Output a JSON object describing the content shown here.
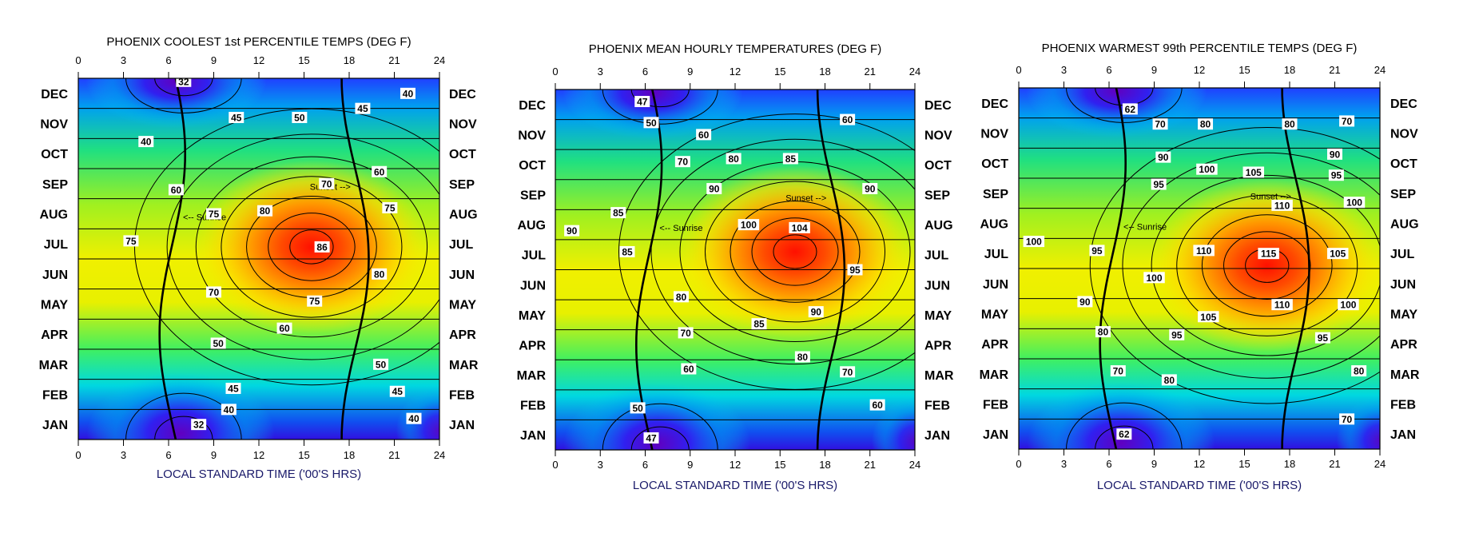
{
  "chart_data": [
    {
      "type": "heatmap",
      "title": "PHOENIX COOLEST 1st PERCENTILE TEMPS (DEG F)",
      "xlabel": "LOCAL STANDARD TIME ('00'S HRS)",
      "x_ticks": [
        "0",
        "3",
        "6",
        "9",
        "12",
        "15",
        "18",
        "21",
        "24"
      ],
      "xlim": [
        0,
        24
      ],
      "months": [
        "JAN",
        "FEB",
        "MAR",
        "APR",
        "MAY",
        "JUN",
        "JUL",
        "AUG",
        "SEP",
        "OCT",
        "NOV",
        "DEC"
      ],
      "peak": {
        "hour": 15.5,
        "month": 6.4,
        "value": 86
      },
      "min": 32,
      "contour_labels": [
        {
          "text": "32",
          "hour": 7.0,
          "month": 11.9
        },
        {
          "text": "45",
          "hour": 10.5,
          "month": 10.7
        },
        {
          "text": "50",
          "hour": 14.7,
          "month": 10.7
        },
        {
          "text": "45",
          "hour": 18.9,
          "month": 11.0
        },
        {
          "text": "40",
          "hour": 21.9,
          "month": 11.5
        },
        {
          "text": "40",
          "hour": 4.5,
          "month": 9.9
        },
        {
          "text": "60",
          "hour": 20.0,
          "month": 8.9
        },
        {
          "text": "70",
          "hour": 16.5,
          "month": 8.5
        },
        {
          "text": "60",
          "hour": 6.5,
          "month": 8.3
        },
        {
          "text": "80",
          "hour": 12.4,
          "month": 7.6
        },
        {
          "text": "75",
          "hour": 20.7,
          "month": 7.7
        },
        {
          "text": "75",
          "hour": 9.0,
          "month": 7.5
        },
        {
          "text": "75",
          "hour": 3.5,
          "month": 6.6
        },
        {
          "text": "86",
          "hour": 16.2,
          "month": 6.4
        },
        {
          "text": "80",
          "hour": 20.0,
          "month": 5.5
        },
        {
          "text": "70",
          "hour": 9.0,
          "month": 4.9
        },
        {
          "text": "75",
          "hour": 15.7,
          "month": 4.6
        },
        {
          "text": "60",
          "hour": 13.7,
          "month": 3.7
        },
        {
          "text": "50",
          "hour": 9.3,
          "month": 3.2
        },
        {
          "text": "50",
          "hour": 20.1,
          "month": 2.5
        },
        {
          "text": "45",
          "hour": 10.3,
          "month": 1.7
        },
        {
          "text": "45",
          "hour": 21.2,
          "month": 1.6
        },
        {
          "text": "40",
          "hour": 10.0,
          "month": 1.0
        },
        {
          "text": "40",
          "hour": 22.3,
          "month": 0.7
        },
        {
          "text": "32",
          "hour": 8.0,
          "month": 0.5
        }
      ]
    },
    {
      "type": "heatmap",
      "title": "PHOENIX MEAN HOURLY TEMPERATURES (DEG F)",
      "xlabel": "LOCAL STANDARD TIME ('00'S HRS)",
      "x_ticks": [
        "0",
        "3",
        "6",
        "9",
        "12",
        "15",
        "18",
        "21",
        "24"
      ],
      "xlim": [
        0,
        24
      ],
      "months": [
        "JAN",
        "FEB",
        "MAR",
        "APR",
        "MAY",
        "JUN",
        "JUL",
        "AUG",
        "SEP",
        "OCT",
        "NOV",
        "DEC"
      ],
      "peak": {
        "hour": 16.0,
        "month": 6.6,
        "value": 104
      },
      "min": 47,
      "contour_labels": [
        {
          "text": "47",
          "hour": 5.8,
          "month": 11.6
        },
        {
          "text": "50",
          "hour": 6.4,
          "month": 10.9
        },
        {
          "text": "60",
          "hour": 19.5,
          "month": 11.0
        },
        {
          "text": "60",
          "hour": 9.9,
          "month": 10.5
        },
        {
          "text": "80",
          "hour": 11.9,
          "month": 9.7
        },
        {
          "text": "85",
          "hour": 15.7,
          "month": 9.7
        },
        {
          "text": "70",
          "hour": 8.5,
          "month": 9.6
        },
        {
          "text": "90",
          "hour": 10.6,
          "month": 8.7
        },
        {
          "text": "90",
          "hour": 21.0,
          "month": 8.7
        },
        {
          "text": "85",
          "hour": 4.2,
          "month": 7.9
        },
        {
          "text": "90",
          "hour": 1.1,
          "month": 7.3
        },
        {
          "text": "100",
          "hour": 12.9,
          "month": 7.5
        },
        {
          "text": "104",
          "hour": 16.3,
          "month": 7.4
        },
        {
          "text": "85",
          "hour": 4.8,
          "month": 6.6
        },
        {
          "text": "95",
          "hour": 20.0,
          "month": 6.0
        },
        {
          "text": "80",
          "hour": 8.4,
          "month": 5.1
        },
        {
          "text": "90",
          "hour": 17.4,
          "month": 4.6
        },
        {
          "text": "85",
          "hour": 13.6,
          "month": 4.2
        },
        {
          "text": "70",
          "hour": 8.7,
          "month": 3.9
        },
        {
          "text": "80",
          "hour": 16.5,
          "month": 3.1
        },
        {
          "text": "70",
          "hour": 19.5,
          "month": 2.6
        },
        {
          "text": "60",
          "hour": 8.9,
          "month": 2.7
        },
        {
          "text": "60",
          "hour": 21.5,
          "month": 1.5
        },
        {
          "text": "50",
          "hour": 5.5,
          "month": 1.4
        },
        {
          "text": "47",
          "hour": 6.4,
          "month": 0.4
        }
      ]
    },
    {
      "type": "heatmap",
      "title": "PHOENIX WARMEST 99th PERCENTILE TEMPS (DEG F)",
      "xlabel": "LOCAL STANDARD TIME ('00'S HRS)",
      "x_ticks": [
        "0",
        "3",
        "6",
        "9",
        "12",
        "15",
        "18",
        "21",
        "24"
      ],
      "xlim": [
        0,
        24
      ],
      "months": [
        "JAN",
        "FEB",
        "MAR",
        "APR",
        "MAY",
        "JUN",
        "JUL",
        "AUG",
        "SEP",
        "OCT",
        "NOV",
        "DEC"
      ],
      "peak": {
        "hour": 16.5,
        "month": 6.1,
        "value": 115
      },
      "min": 62,
      "contour_labels": [
        {
          "text": "62",
          "hour": 7.4,
          "month": 11.3
        },
        {
          "text": "70",
          "hour": 9.4,
          "month": 10.8
        },
        {
          "text": "80",
          "hour": 12.4,
          "month": 10.8
        },
        {
          "text": "80",
          "hour": 18.0,
          "month": 10.8
        },
        {
          "text": "70",
          "hour": 21.8,
          "month": 10.9
        },
        {
          "text": "90",
          "hour": 9.6,
          "month": 9.7
        },
        {
          "text": "90",
          "hour": 21.0,
          "month": 9.8
        },
        {
          "text": "100",
          "hour": 12.5,
          "month": 9.3
        },
        {
          "text": "105",
          "hour": 15.6,
          "month": 9.2
        },
        {
          "text": "95",
          "hour": 21.1,
          "month": 9.1
        },
        {
          "text": "95",
          "hour": 9.3,
          "month": 8.8
        },
        {
          "text": "100",
          "hour": 22.3,
          "month": 8.2
        },
        {
          "text": "110",
          "hour": 17.5,
          "month": 8.1
        },
        {
          "text": "100",
          "hour": 1.0,
          "month": 6.9
        },
        {
          "text": "95",
          "hour": 5.2,
          "month": 6.6
        },
        {
          "text": "110",
          "hour": 12.3,
          "month": 6.6
        },
        {
          "text": "115",
          "hour": 16.6,
          "month": 6.5
        },
        {
          "text": "105",
          "hour": 21.2,
          "month": 6.5
        },
        {
          "text": "100",
          "hour": 9.0,
          "month": 5.7
        },
        {
          "text": "90",
          "hour": 4.4,
          "month": 4.9
        },
        {
          "text": "110",
          "hour": 17.5,
          "month": 4.8
        },
        {
          "text": "100",
          "hour": 21.9,
          "month": 4.8
        },
        {
          "text": "105",
          "hour": 12.6,
          "month": 4.4
        },
        {
          "text": "95",
          "hour": 10.5,
          "month": 3.8
        },
        {
          "text": "95",
          "hour": 20.2,
          "month": 3.7
        },
        {
          "text": "80",
          "hour": 5.6,
          "month": 3.9
        },
        {
          "text": "70",
          "hour": 6.6,
          "month": 2.6
        },
        {
          "text": "80",
          "hour": 10.0,
          "month": 2.3
        },
        {
          "text": "80",
          "hour": 22.6,
          "month": 2.6
        },
        {
          "text": "70",
          "hour": 21.8,
          "month": 1.0
        },
        {
          "text": "62",
          "hour": 7.0,
          "month": 0.5
        }
      ]
    }
  ],
  "annotations": {
    "sunrise": "<-- Sunrise",
    "sunset": "Sunset -->"
  }
}
